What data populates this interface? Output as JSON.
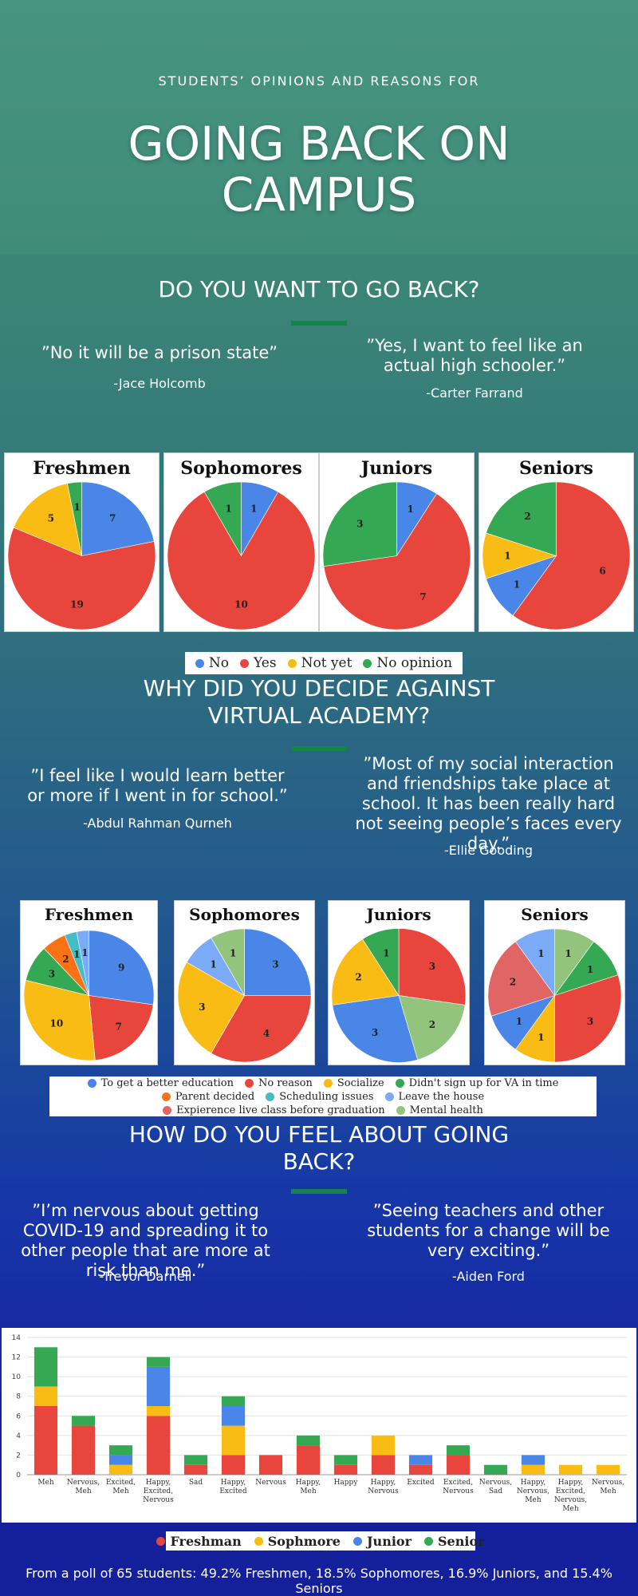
{
  "header": {
    "subtitle": "STUDENTS’ OPINIONS AND REASONS FOR",
    "title_line1": "GOING BACK ON",
    "title_line2": "CAMPUS"
  },
  "sections": [
    {
      "title_line1": "DO YOU WANT TO GO BACK?",
      "title_line2": "",
      "quotes": [
        {
          "text": "”No it will be a prison state”",
          "author": "-Jace Holcomb"
        },
        {
          "text": "”Yes, I want to feel like an actual high schooler.”",
          "author": "-Carter Farrand"
        }
      ]
    },
    {
      "title_line1": "WHY DID YOU DECIDE AGAINST",
      "title_line2": "VIRTUAL ACADEMY?",
      "quotes": [
        {
          "text": "”I feel like I would learn better or more if I went in for school.”",
          "author": "-Abdul Rahman Qurneh"
        },
        {
          "text": "”Most of my social interaction and friendships take place at school. It has been really hard not seeing people’s faces every day.”",
          "author": "-Ellie Gooding"
        }
      ]
    },
    {
      "title_line1": "HOW DO YOU FEEL ABOUT GOING",
      "title_line2": "BACK?",
      "quotes": [
        {
          "text": "”I’m nervous about getting COVID-19 and spreading it to other people that are more at risk than me.”",
          "author": "-Trevor Darnell"
        },
        {
          "text": "”Seeing teachers and other students for a change will be very exciting.”",
          "author": "-Aiden Ford"
        }
      ]
    }
  ],
  "footer": "From a poll of 65 students: 49.2% Freshmen, 18.5% Sophomores, 16.9% Juniors, and 15.4% Seniors",
  "chart_data": [
    {
      "type": "pie",
      "group": "Do you want to go back?",
      "legend": [
        {
          "name": "No",
          "color": "#4a86e8"
        },
        {
          "name": "Yes",
          "color": "#e8453c"
        },
        {
          "name": "Not yet",
          "color": "#f9bc15"
        },
        {
          "name": "No opinion",
          "color": "#34a853"
        }
      ],
      "pies": [
        {
          "title": "Freshmen",
          "slices": [
            {
              "label": "No",
              "value": 7
            },
            {
              "label": "Yes",
              "value": 19
            },
            {
              "label": "Not yet",
              "value": 5
            },
            {
              "label": "No opinion",
              "value": 1
            }
          ]
        },
        {
          "title": "Sophomores",
          "slices": [
            {
              "label": "No",
              "value": 1
            },
            {
              "label": "Yes",
              "value": 10
            },
            {
              "label": "No opinion",
              "value": 1
            }
          ]
        },
        {
          "title": "Juniors",
          "slices": [
            {
              "label": "No",
              "value": 1
            },
            {
              "label": "Yes",
              "value": 7
            },
            {
              "label": "No opinion",
              "value": 3
            }
          ]
        },
        {
          "title": "Seniors",
          "slices": [
            {
              "label": "Yes",
              "value": 6
            },
            {
              "label": "No",
              "value": 1
            },
            {
              "label": "Not yet",
              "value": 1
            },
            {
              "label": "No opinion",
              "value": 2
            }
          ]
        }
      ]
    },
    {
      "type": "pie",
      "group": "Why did you decide against virtual academy?",
      "legend": [
        {
          "name": "To get a better education",
          "color": "#4a86e8"
        },
        {
          "name": "No reason",
          "color": "#e8453c"
        },
        {
          "name": "Socialize",
          "color": "#f9bc15"
        },
        {
          "name": "Didn't sign up for VA in time",
          "color": "#34a853"
        },
        {
          "name": "Parent decided",
          "color": "#fa7116"
        },
        {
          "name": "Scheduling issues",
          "color": "#46bdc6"
        },
        {
          "name": "Leave the house",
          "color": "#7baaf7"
        },
        {
          "name": "Expierence live class before graduation",
          "color": "#e06666"
        },
        {
          "name": "Mental health",
          "color": "#93c47d"
        }
      ],
      "pies": [
        {
          "title": "Freshmen",
          "slices": [
            {
              "label": "To get a better education",
              "value": 9
            },
            {
              "label": "No reason",
              "value": 7
            },
            {
              "label": "Socialize",
              "value": 10
            },
            {
              "label": "Didn't sign up for VA in time",
              "value": 3
            },
            {
              "label": "Parent decided",
              "value": 2
            },
            {
              "label": "Scheduling issues",
              "value": 1
            },
            {
              "label": "Leave the house",
              "value": 1
            }
          ]
        },
        {
          "title": "Sophomores",
          "slices": [
            {
              "label": "To get a better education",
              "value": 3
            },
            {
              "label": "No reason",
              "value": 4
            },
            {
              "label": "Socialize",
              "value": 3
            },
            {
              "label": "Leave the house",
              "value": 1
            },
            {
              "label": "Mental health",
              "value": 1
            }
          ]
        },
        {
          "title": "Juniors",
          "slices": [
            {
              "label": "No reason",
              "value": 3
            },
            {
              "label": "Mental health",
              "value": 2
            },
            {
              "label": "To get a better education",
              "value": 3
            },
            {
              "label": "Socialize",
              "value": 2
            },
            {
              "label": "Didn't sign up for VA in time",
              "value": 1
            }
          ]
        },
        {
          "title": "Seniors",
          "slices": [
            {
              "label": "Mental health",
              "value": 1
            },
            {
              "label": "Didn't sign up for VA in time",
              "value": 1
            },
            {
              "label": "No reason",
              "value": 3
            },
            {
              "label": "Socialize",
              "value": 1
            },
            {
              "label": "To get a better education",
              "value": 1
            },
            {
              "label": "Expierence live class before graduation",
              "value": 2
            },
            {
              "label": "Leave the house",
              "value": 1
            }
          ]
        }
      ]
    },
    {
      "type": "bar",
      "stacked": true,
      "group": "How do you feel about going back?",
      "categories": [
        "Meh",
        "Nervous, Meh",
        "Excited, Meh",
        "Happy, Excited, Nervous",
        "Sad",
        "Happy, Excited",
        "Nervous",
        "Happy, Meh",
        "Happy",
        "Happy, Nervous",
        "Excited",
        "Excited, Nervous",
        "Nervous, Sad",
        "Happy, Nervous, Meh",
        "Happy, Excited, Nervous, Meh",
        "Nervous, Meh"
      ],
      "series": [
        {
          "name": "Freshman",
          "color": "#e8453c",
          "values": [
            7,
            5,
            0,
            6,
            1,
            2,
            2,
            3,
            1,
            2,
            1,
            2,
            0,
            0,
            0,
            0
          ]
        },
        {
          "name": "Sophmore",
          "color": "#f9bc15",
          "values": [
            2,
            0,
            1,
            1,
            0,
            3,
            0,
            0,
            0,
            2,
            0,
            0,
            0,
            1,
            1,
            1
          ]
        },
        {
          "name": "Junior",
          "color": "#4a86e8",
          "values": [
            0,
            0,
            1,
            4,
            0,
            2,
            0,
            0,
            0,
            0,
            1,
            0,
            0,
            1,
            0,
            0
          ]
        },
        {
          "name": "Senior",
          "color": "#34a853",
          "values": [
            4,
            1,
            1,
            1,
            1,
            1,
            0,
            1,
            1,
            0,
            0,
            1,
            1,
            0,
            0,
            0
          ]
        }
      ],
      "ylim": [
        0,
        14
      ],
      "yticks": [
        0,
        2,
        4,
        6,
        8,
        10,
        12,
        14
      ],
      "grid": true,
      "legend_position": "bottom"
    }
  ]
}
